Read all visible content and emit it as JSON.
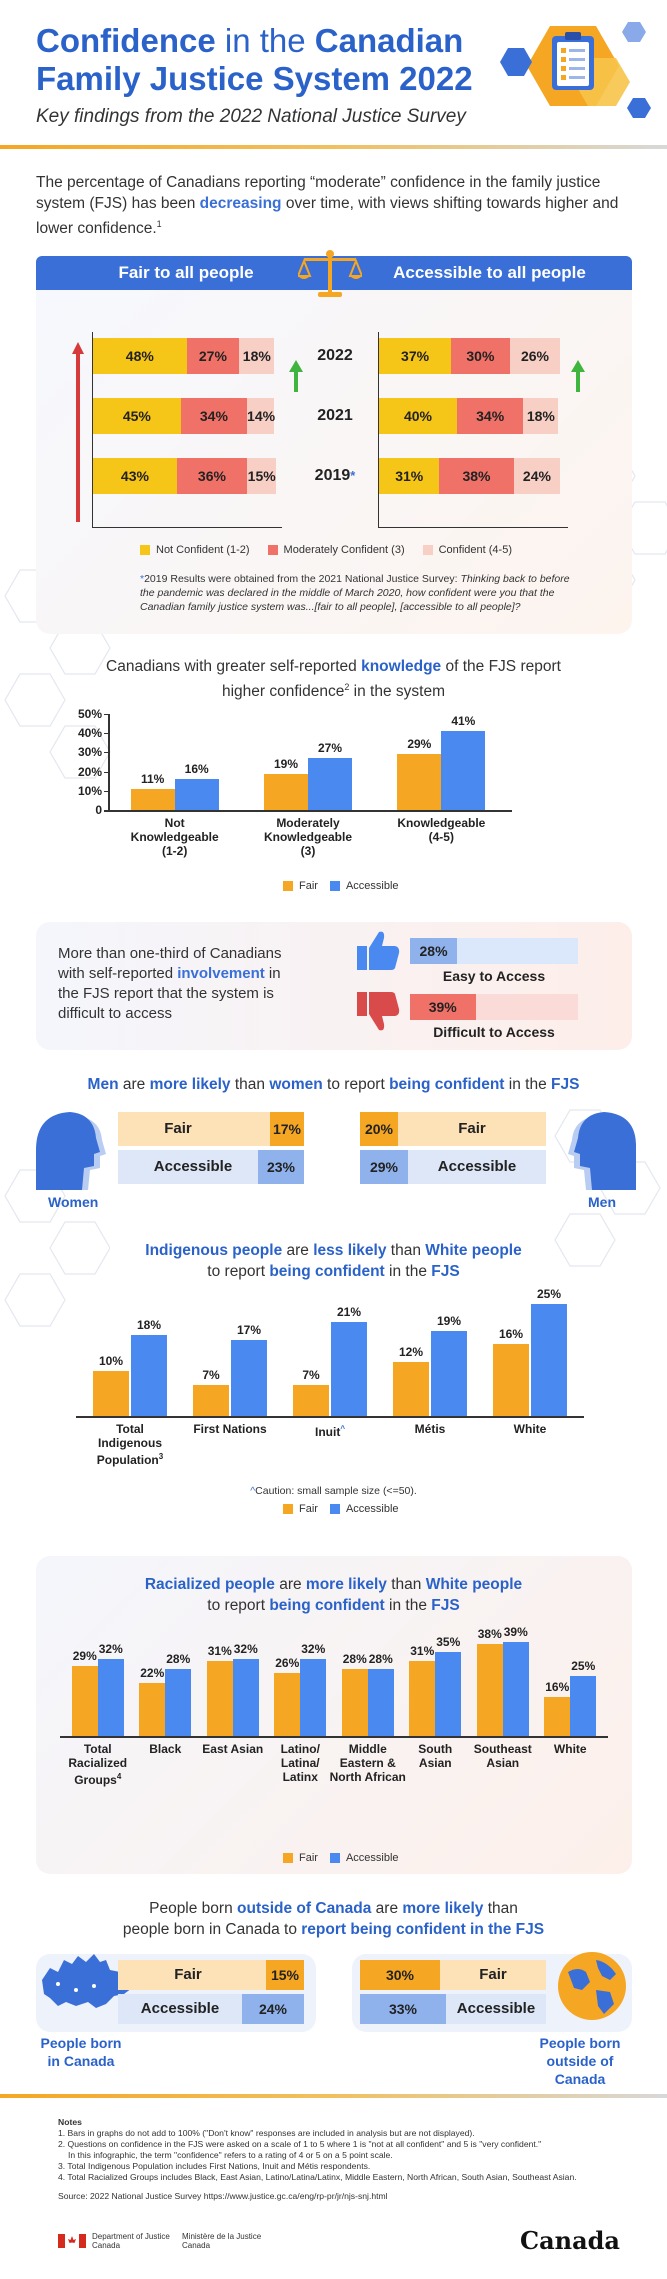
{
  "header": {
    "title_bold1": "Confidence",
    "title_thin": " in the ",
    "title_bold2": "Canadian",
    "title_line2": "Family Justice System 2022",
    "subtitle": "Key findings from the 2022 National Justice Survey"
  },
  "intro": {
    "text_before": "The percentage of Canadians reporting “moderate” confidence in the family justice system (FJS) has been ",
    "highlight": "decreasing",
    "text_after": " over time, with views shifting towards higher and lower confidence.",
    "sup": "1"
  },
  "colors": {
    "not_confident": "#f5c518",
    "moderately_confident": "#f07167",
    "confident": "#f8cfc5",
    "fair": "#f5a623",
    "accessible": "#4a8af0",
    "header_blue": "#3a6fd8"
  },
  "stacked": {
    "left_header": "Fair to all people",
    "right_header": "Accessible to all people",
    "years": [
      "2022",
      "2021",
      "2019"
    ],
    "year_marker": "*",
    "fair": [
      {
        "year": "2022",
        "not": 48,
        "mod": 27,
        "conf": 18
      },
      {
        "year": "2021",
        "not": 45,
        "mod": 34,
        "conf": 14
      },
      {
        "year": "2019",
        "not": 43,
        "mod": 36,
        "conf": 15
      }
    ],
    "accessible": [
      {
        "year": "2022",
        "not": 37,
        "mod": 30,
        "conf": 26
      },
      {
        "year": "2021",
        "not": 40,
        "mod": 34,
        "conf": 18
      },
      {
        "year": "2019",
        "not": 31,
        "mod": 38,
        "conf": 24
      }
    ],
    "legend": [
      "Not Confident (1-2)",
      "Moderately Confident (3)",
      "Confident (4-5)"
    ],
    "note_star": "*",
    "note_text": "2019 Results were obtained from the 2021 National Justice Survey: ",
    "note_italic": "Thinking back to before the pandemic was declared in the middle of March 2020, how confident were you that the Canadian family justice system was...[fair to all people], [accessible to all people]?"
  },
  "knowledge": {
    "title_a": "Canadians with greater self-reported ",
    "title_b": "knowledge",
    "title_c": " of the FJS report",
    "title_d": "higher confidence",
    "title_sup": "2",
    "title_e": " in the system",
    "yticks": [
      "50%",
      "40%",
      "30%",
      "20%",
      "10%",
      "0"
    ]
  },
  "chart_data": [
    {
      "type": "bar",
      "categories": [
        "Not Knowledgeable (1-2)",
        "Moderately Knowledgeable (3)",
        "Knowledgeable (4-5)"
      ],
      "category_lines": [
        [
          "Not",
          "Knowledgeable",
          "(1-2)"
        ],
        [
          "Moderately",
          "Knowledgeable",
          "(3)"
        ],
        [
          "Knowledgeable",
          "(4-5)"
        ]
      ],
      "series": [
        {
          "name": "Fair",
          "values": [
            11,
            19,
            29
          ]
        },
        {
          "name": "Accessible",
          "values": [
            16,
            27,
            41
          ]
        }
      ],
      "ylim": [
        0,
        50
      ]
    },
    {
      "type": "bar",
      "categories": [
        "Total Indigenous Population",
        "First Nations",
        "Inuit",
        "Métis",
        "White"
      ],
      "category_lines": [
        [
          "Total",
          "Indigenous",
          "Population"
        ],
        [
          "First Nations"
        ],
        [
          "Inuit"
        ],
        [
          "Métis"
        ],
        [
          "White"
        ]
      ],
      "category_sup": [
        "3",
        "",
        "^",
        "",
        ""
      ],
      "series": [
        {
          "name": "Fair",
          "values": [
            10,
            7,
            7,
            12,
            16
          ]
        },
        {
          "name": "Accessible",
          "values": [
            18,
            17,
            21,
            19,
            25
          ]
        }
      ],
      "ylim": [
        0,
        25
      ]
    },
    {
      "type": "bar",
      "categories": [
        "Total Racialized Groups",
        "Black",
        "East Asian",
        "Latino/Latina/Latinx",
        "Middle Eastern & North African",
        "South Asian",
        "Southeast Asian",
        "White"
      ],
      "category_lines": [
        [
          "Total",
          "Racialized",
          "Groups"
        ],
        [
          "Black"
        ],
        [
          "East Asian"
        ],
        [
          "Latino/",
          "Latina/",
          "Latinx"
        ],
        [
          "Middle",
          "Eastern &",
          "North African"
        ],
        [
          "South",
          "Asian"
        ],
        [
          "Southeast",
          "Asian"
        ],
        [
          "White"
        ]
      ],
      "category_sup": [
        "4",
        "",
        "",
        "",
        "",
        "",
        "",
        ""
      ],
      "series": [
        {
          "name": "Fair",
          "values": [
            29,
            22,
            31,
            26,
            28,
            31,
            38,
            16
          ]
        },
        {
          "name": "Accessible",
          "values": [
            32,
            28,
            32,
            32,
            28,
            35,
            39,
            25
          ]
        }
      ],
      "ylim": [
        0,
        39
      ]
    }
  ],
  "legend_fa": {
    "fair": "Fair",
    "accessible": "Accessible"
  },
  "involvement": {
    "text_a": "More than one-third of Canadians with self-reported ",
    "text_b": "involvement",
    "text_c": " in the FJS report that the system is difficult to access",
    "easy_value": 28,
    "easy_label": "28%",
    "easy_caption": "Easy to Access",
    "difficult_value": 39,
    "difficult_label": "39%",
    "difficult_caption": "Difficult to Access"
  },
  "gender": {
    "title_a": "Men",
    "title_b": " are ",
    "title_c": "more likely",
    "title_d": " than ",
    "title_e": "women",
    "title_f": " to report ",
    "title_g": "being confident",
    "title_h": " in the ",
    "title_i": "FJS",
    "women_label": "Women",
    "men_label": "Men",
    "fair": "Fair",
    "accessible": "Accessible",
    "women_fair": "17%",
    "women_acc": "23%",
    "men_fair": "20%",
    "men_acc": "29%"
  },
  "indigenous": {
    "title_a": "Indigenous people",
    "title_b": " are ",
    "title_c": "less likely",
    "title_d": " than ",
    "title_e": "White people",
    "title_f": "to report ",
    "title_g": "being confident",
    "title_h": " in the ",
    "title_i": "FJS",
    "caution_mark": "^",
    "caution": "Caution: small sample size (<=50)."
  },
  "racialized": {
    "title_a": "Racialized people",
    "title_b": " are ",
    "title_c": "more likely",
    "title_d": " than ",
    "title_e": "White people",
    "title_f": "to report ",
    "title_g": "being confident",
    "title_h": " in the ",
    "title_i": "FJS"
  },
  "born": {
    "title_a": "People born ",
    "title_b": "outside of Canada",
    "title_c": " are ",
    "title_d": "more likely",
    "title_e": " than",
    "title_f": "people born in Canada to ",
    "title_g": "report being confident in the FJS",
    "canada_label": "People born in Canada",
    "outside_label": "People born outside of Canada",
    "fair": "Fair",
    "accessible": "Accessible",
    "canada_fair": "15%",
    "canada_acc": "24%",
    "outside_fair": "30%",
    "outside_acc": "33%"
  },
  "notes": {
    "heading": "Notes",
    "n1": "1.  Bars in graphs do not add to 100% (\"Don't know\" responses are included in analysis but are not displayed).",
    "n2": "2.  Questions on confidence in the FJS were asked on a scale of 1 to 5 where 1 is \"not at all confident\" and 5 is \"very confident.\"",
    "n2b": "In this infographic, the term \"confidence\" refers to a rating of 4 or 5 on a 5 point scale.",
    "n3": "3.  Total Indigenous Population includes First Nations, Inuit and Métis respondents.",
    "n4": "4.  Total Racialized Groups includes Black, East Asian, Latino/Latina/Latinx, Middle Eastern, North African, South Asian, Southeast Asian.",
    "source": "Source: 2022 National Justice Survey https://www.justice.gc.ca/eng/rp-pr/jr/njs-snj.html",
    "dept_en": "Department of Justice Canada",
    "dept_fr": "Ministère de la Justice Canada",
    "wordmark": "Canada"
  }
}
